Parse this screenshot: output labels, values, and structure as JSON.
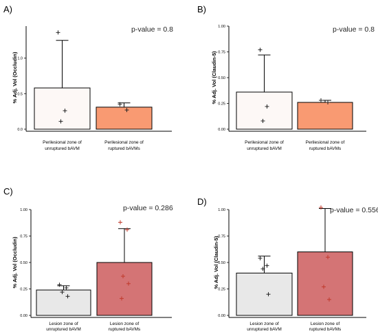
{
  "chart_data": [
    {
      "panel": "A)",
      "type": "bar",
      "annotation": "p-value = 0.8",
      "ylabel": "% Adj. Vol (Occludin)",
      "ylim": [
        0,
        1.45
      ],
      "ticks": [
        0.0,
        0.5,
        1.0
      ],
      "tick_labels": [
        "0.0",
        "0.5",
        "1.0"
      ],
      "categories": [
        {
          "line1": "Perilesional zone of",
          "line2": "unruptured bAVM",
          "value": 0.58,
          "err_upper": 1.25,
          "fill": "#fdf8f6",
          "points": [
            1.36,
            0.26,
            0.11
          ],
          "point_color": "#222222"
        },
        {
          "line1": "Perilesional zone of",
          "line2": "ruptured bAVMs",
          "value": 0.31,
          "err_upper": 0.37,
          "fill": "#f99a72",
          "points": [
            0.35,
            0.27
          ],
          "point_color": "#222222"
        }
      ]
    },
    {
      "panel": "B)",
      "type": "bar",
      "annotation": "p-value = 0.8",
      "ylabel": "% Adj. Vol (Claudin-5)",
      "ylim": [
        0,
        1.0
      ],
      "ticks": [
        0.0,
        0.25,
        0.5,
        0.75,
        1.0
      ],
      "tick_labels": [
        "0.00",
        "0.25",
        "0.50",
        "0.75",
        "1.00"
      ],
      "categories": [
        {
          "line1": "Perilesional zone of",
          "line2": "unruptured bAVM",
          "value": 0.36,
          "err_upper": 0.72,
          "fill": "#fdf8f6",
          "points": [
            0.77,
            0.22,
            0.08
          ],
          "point_color": "#222222"
        },
        {
          "line1": "Perilesional zone of",
          "line2": "ruptured bAVMs",
          "value": 0.26,
          "err_upper": 0.28,
          "fill": "#f99a72",
          "points": [
            0.28,
            0.26
          ],
          "point_color": "#222222"
        }
      ]
    },
    {
      "panel": "C)",
      "type": "bar",
      "annotation": "p-value = 0.286",
      "ylabel": "% Adj. Vol (Occludin)",
      "ylim": [
        0,
        1.0
      ],
      "ticks": [
        0.0,
        0.25,
        0.5,
        0.75,
        1.0
      ],
      "tick_labels": [
        "0.00",
        "0.25",
        "0.50",
        "0.75",
        "1.00"
      ],
      "categories": [
        {
          "line1": "Lesion zone of",
          "line2": "unruptured bAVM",
          "value": 0.24,
          "err_upper": 0.28,
          "fill": "#e8e8e8",
          "points": [
            0.29,
            0.26,
            0.22,
            0.18
          ],
          "point_color": "#222222"
        },
        {
          "line1": "Lesion zone of",
          "line2": "ruptured bAVMs",
          "value": 0.5,
          "err_upper": 0.82,
          "fill": "#d47475",
          "points": [
            0.88,
            0.81,
            0.37,
            0.3,
            0.16
          ],
          "point_color": "#c0392b"
        }
      ]
    },
    {
      "panel": "D)",
      "type": "bar",
      "annotation": "p-value = 0.556",
      "ylabel": "% Adj. Vol (Claudin-5)",
      "ylim": [
        0,
        1.0
      ],
      "ticks": [
        0.0,
        0.25,
        0.5,
        0.75,
        1.0
      ],
      "tick_labels": [
        "0.00",
        "0.25",
        "0.50",
        "0.75",
        "1.00"
      ],
      "categories": [
        {
          "line1": "Lesion zone of",
          "line2": "unruptured bAVM",
          "value": 0.4,
          "err_upper": 0.56,
          "fill": "#e8e8e8",
          "points": [
            0.54,
            0.47,
            0.44,
            0.2
          ],
          "point_color": "#222222"
        },
        {
          "line1": "Lesion zone of",
          "line2": "ruptured bAVMs",
          "value": 0.6,
          "err_upper": 1.01,
          "fill": "#d47475",
          "points": [
            1.02,
            0.55,
            0.27,
            0.15
          ],
          "point_color": "#c0392b"
        }
      ]
    }
  ]
}
